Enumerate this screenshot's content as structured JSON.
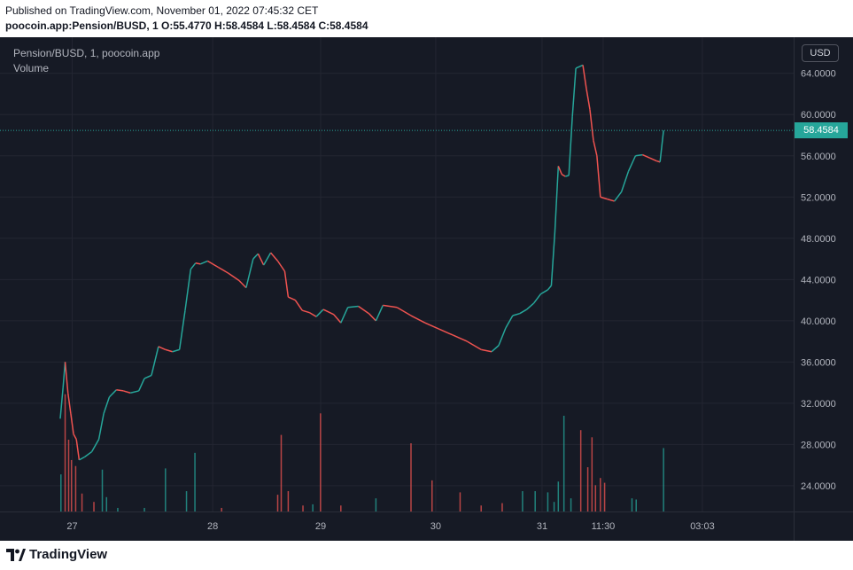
{
  "header": {
    "published": "Published on TradingView.com, November 01, 2022 07:45:32 CET",
    "ohlc": "poocoin.app:Pension/BUSD, 1 O:55.4770 H:58.4584 L:58.4584 C:58.4584"
  },
  "legend": {
    "title": "Pension/BUSD, 1, poocoin.app",
    "volume": "Volume"
  },
  "currency": "USD",
  "last_price_label": "58.4584",
  "footer": {
    "brand": "TradingView"
  },
  "colors": {
    "up": "#26a69a",
    "down": "#ef5350",
    "background": "#161a25",
    "grid": "#232632",
    "text": "#b2b5be"
  },
  "chart_data": {
    "type": "line",
    "y_ticks": [
      "64.0000",
      "60.0000",
      "56.0000",
      "52.0000",
      "48.0000",
      "44.0000",
      "40.0000",
      "36.0000",
      "32.0000",
      "28.0000",
      "24.0000"
    ],
    "y_tick_values": [
      64,
      60,
      56,
      52,
      48,
      44,
      40,
      36,
      32,
      28,
      24
    ],
    "x_ticks": [
      "27",
      "28",
      "29",
      "30",
      "31",
      "11:30",
      "03:03"
    ],
    "x_tick_positions": [
      0.091,
      0.268,
      0.404,
      0.549,
      0.683,
      0.76,
      0.885
    ],
    "ylim": [
      21.5,
      67.5
    ],
    "last_price": 58.4584,
    "grid": true,
    "price_series": [
      {
        "x": 0.0,
        "y": 30.5
      },
      {
        "x": 0.004,
        "y": 33.5
      },
      {
        "x": 0.007,
        "y": 36.0
      },
      {
        "x": 0.011,
        "y": 33.0
      },
      {
        "x": 0.015,
        "y": 31.0
      },
      {
        "x": 0.019,
        "y": 29.0
      },
      {
        "x": 0.023,
        "y": 28.5
      },
      {
        "x": 0.027,
        "y": 26.5
      },
      {
        "x": 0.035,
        "y": 26.8
      },
      {
        "x": 0.045,
        "y": 27.3
      },
      {
        "x": 0.055,
        "y": 28.5
      },
      {
        "x": 0.062,
        "y": 31.0
      },
      {
        "x": 0.07,
        "y": 32.6
      },
      {
        "x": 0.08,
        "y": 33.3
      },
      {
        "x": 0.09,
        "y": 33.2
      },
      {
        "x": 0.1,
        "y": 33.0
      },
      {
        "x": 0.112,
        "y": 33.2
      },
      {
        "x": 0.12,
        "y": 34.4
      },
      {
        "x": 0.13,
        "y": 34.7
      },
      {
        "x": 0.14,
        "y": 37.5
      },
      {
        "x": 0.15,
        "y": 37.2
      },
      {
        "x": 0.16,
        "y": 37.0
      },
      {
        "x": 0.17,
        "y": 37.2
      },
      {
        "x": 0.178,
        "y": 41.0
      },
      {
        "x": 0.186,
        "y": 45.0
      },
      {
        "x": 0.193,
        "y": 45.6
      },
      {
        "x": 0.2,
        "y": 45.5
      },
      {
        "x": 0.21,
        "y": 45.8
      },
      {
        "x": 0.225,
        "y": 45.2
      },
      {
        "x": 0.24,
        "y": 44.6
      },
      {
        "x": 0.255,
        "y": 43.9
      },
      {
        "x": 0.265,
        "y": 43.2
      },
      {
        "x": 0.275,
        "y": 46.0
      },
      {
        "x": 0.282,
        "y": 46.5
      },
      {
        "x": 0.29,
        "y": 45.4
      },
      {
        "x": 0.3,
        "y": 46.6
      },
      {
        "x": 0.31,
        "y": 45.8
      },
      {
        "x": 0.32,
        "y": 44.8
      },
      {
        "x": 0.325,
        "y": 42.3
      },
      {
        "x": 0.335,
        "y": 42.0
      },
      {
        "x": 0.345,
        "y": 41.0
      },
      {
        "x": 0.355,
        "y": 40.8
      },
      {
        "x": 0.365,
        "y": 40.4
      },
      {
        "x": 0.375,
        "y": 41.1
      },
      {
        "x": 0.39,
        "y": 40.6
      },
      {
        "x": 0.4,
        "y": 39.8
      },
      {
        "x": 0.41,
        "y": 41.3
      },
      {
        "x": 0.425,
        "y": 41.4
      },
      {
        "x": 0.44,
        "y": 40.7
      },
      {
        "x": 0.45,
        "y": 40.0
      },
      {
        "x": 0.46,
        "y": 41.5
      },
      {
        "x": 0.48,
        "y": 41.3
      },
      {
        "x": 0.5,
        "y": 40.5
      },
      {
        "x": 0.52,
        "y": 39.8
      },
      {
        "x": 0.54,
        "y": 39.2
      },
      {
        "x": 0.56,
        "y": 38.6
      },
      {
        "x": 0.58,
        "y": 38.0
      },
      {
        "x": 0.6,
        "y": 37.2
      },
      {
        "x": 0.615,
        "y": 37.0
      },
      {
        "x": 0.625,
        "y": 37.6
      },
      {
        "x": 0.635,
        "y": 39.3
      },
      {
        "x": 0.645,
        "y": 40.5
      },
      {
        "x": 0.655,
        "y": 40.7
      },
      {
        "x": 0.665,
        "y": 41.1
      },
      {
        "x": 0.675,
        "y": 41.7
      },
      {
        "x": 0.685,
        "y": 42.6
      },
      {
        "x": 0.695,
        "y": 43.0
      },
      {
        "x": 0.7,
        "y": 43.4
      },
      {
        "x": 0.705,
        "y": 48.5
      },
      {
        "x": 0.71,
        "y": 55.0
      },
      {
        "x": 0.715,
        "y": 54.2
      },
      {
        "x": 0.72,
        "y": 54.0
      },
      {
        "x": 0.725,
        "y": 54.1
      },
      {
        "x": 0.73,
        "y": 59.8
      },
      {
        "x": 0.735,
        "y": 64.5
      },
      {
        "x": 0.745,
        "y": 64.8
      },
      {
        "x": 0.75,
        "y": 62.5
      },
      {
        "x": 0.755,
        "y": 60.5
      },
      {
        "x": 0.76,
        "y": 57.5
      },
      {
        "x": 0.765,
        "y": 56.0
      },
      {
        "x": 0.77,
        "y": 52.0
      },
      {
        "x": 0.78,
        "y": 51.8
      },
      {
        "x": 0.79,
        "y": 51.6
      },
      {
        "x": 0.8,
        "y": 52.5
      },
      {
        "x": 0.81,
        "y": 54.5
      },
      {
        "x": 0.82,
        "y": 56.0
      },
      {
        "x": 0.83,
        "y": 56.1
      },
      {
        "x": 0.84,
        "y": 55.8
      },
      {
        "x": 0.85,
        "y": 55.5
      },
      {
        "x": 0.855,
        "y": 55.4
      },
      {
        "x": 0.86,
        "y": 58.4584
      }
    ],
    "volume_series": [
      {
        "x": 0.001,
        "v": 0.31,
        "d": "up"
      },
      {
        "x": 0.007,
        "v": 0.98,
        "d": "down"
      },
      {
        "x": 0.012,
        "v": 0.6,
        "d": "down"
      },
      {
        "x": 0.016,
        "v": 0.43,
        "d": "down"
      },
      {
        "x": 0.022,
        "v": 0.38,
        "d": "down"
      },
      {
        "x": 0.031,
        "v": 0.15,
        "d": "down"
      },
      {
        "x": 0.048,
        "v": 0.08,
        "d": "down"
      },
      {
        "x": 0.06,
        "v": 0.35,
        "d": "up"
      },
      {
        "x": 0.066,
        "v": 0.12,
        "d": "up"
      },
      {
        "x": 0.082,
        "v": 0.03,
        "d": "up"
      },
      {
        "x": 0.12,
        "v": 0.03,
        "d": "up"
      },
      {
        "x": 0.15,
        "v": 0.36,
        "d": "up"
      },
      {
        "x": 0.18,
        "v": 0.17,
        "d": "up"
      },
      {
        "x": 0.192,
        "v": 0.49,
        "d": "up"
      },
      {
        "x": 0.23,
        "v": 0.03,
        "d": "down"
      },
      {
        "x": 0.31,
        "v": 0.14,
        "d": "down"
      },
      {
        "x": 0.315,
        "v": 0.64,
        "d": "down"
      },
      {
        "x": 0.325,
        "v": 0.17,
        "d": "down"
      },
      {
        "x": 0.346,
        "v": 0.05,
        "d": "down"
      },
      {
        "x": 0.36,
        "v": 0.06,
        "d": "up"
      },
      {
        "x": 0.371,
        "v": 0.82,
        "d": "down"
      },
      {
        "x": 0.4,
        "v": 0.05,
        "d": "down"
      },
      {
        "x": 0.45,
        "v": 0.11,
        "d": "up"
      },
      {
        "x": 0.5,
        "v": 0.57,
        "d": "down"
      },
      {
        "x": 0.53,
        "v": 0.26,
        "d": "down"
      },
      {
        "x": 0.57,
        "v": 0.16,
        "d": "down"
      },
      {
        "x": 0.6,
        "v": 0.05,
        "d": "down"
      },
      {
        "x": 0.63,
        "v": 0.07,
        "d": "down"
      },
      {
        "x": 0.659,
        "v": 0.17,
        "d": "up"
      },
      {
        "x": 0.677,
        "v": 0.17,
        "d": "up"
      },
      {
        "x": 0.695,
        "v": 0.16,
        "d": "up"
      },
      {
        "x": 0.704,
        "v": 0.08,
        "d": "up"
      },
      {
        "x": 0.71,
        "v": 0.25,
        "d": "up"
      },
      {
        "x": 0.718,
        "v": 0.8,
        "d": "up"
      },
      {
        "x": 0.728,
        "v": 0.11,
        "d": "up"
      },
      {
        "x": 0.742,
        "v": 0.68,
        "d": "down"
      },
      {
        "x": 0.752,
        "v": 0.37,
        "d": "down"
      },
      {
        "x": 0.758,
        "v": 0.62,
        "d": "down"
      },
      {
        "x": 0.763,
        "v": 0.22,
        "d": "down"
      },
      {
        "x": 0.77,
        "v": 0.28,
        "d": "down"
      },
      {
        "x": 0.776,
        "v": 0.24,
        "d": "down"
      },
      {
        "x": 0.815,
        "v": 0.11,
        "d": "up"
      },
      {
        "x": 0.821,
        "v": 0.1,
        "d": "up"
      },
      {
        "x": 0.86,
        "v": 0.53,
        "d": "up"
      }
    ]
  }
}
